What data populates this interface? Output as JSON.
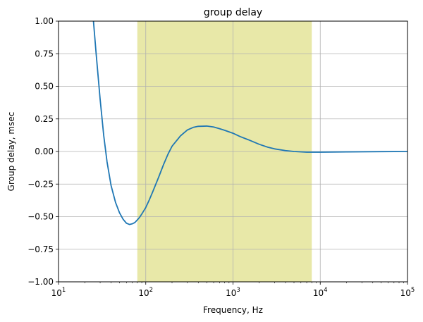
{
  "chart_data": {
    "type": "line",
    "title": "group delay",
    "xlabel": "Frequency, Hz",
    "ylabel": "Group delay, msec",
    "x_scale": "log",
    "xlim": [
      10,
      100000
    ],
    "ylim": [
      -1.0,
      1.0
    ],
    "grid": true,
    "x_ticks": [
      {
        "value": 10,
        "base": "10",
        "exp": "1"
      },
      {
        "value": 100,
        "base": "10",
        "exp": "2"
      },
      {
        "value": 1000,
        "base": "10",
        "exp": "3"
      },
      {
        "value": 10000,
        "base": "10",
        "exp": "4"
      },
      {
        "value": 100000,
        "base": "10",
        "exp": "5"
      }
    ],
    "y_ticks": [
      {
        "value": -1.0,
        "label": "−1.00"
      },
      {
        "value": -0.75,
        "label": "−0.75"
      },
      {
        "value": -0.5,
        "label": "−0.50"
      },
      {
        "value": -0.25,
        "label": "−0.25"
      },
      {
        "value": 0.0,
        "label": "0.00"
      },
      {
        "value": 0.25,
        "label": "0.25"
      },
      {
        "value": 0.5,
        "label": "0.50"
      },
      {
        "value": 0.75,
        "label": "0.75"
      },
      {
        "value": 1.0,
        "label": "1.00"
      }
    ],
    "shaded_band": {
      "x_start": 80,
      "x_end": 8000,
      "color": "#e8e8a8"
    },
    "series": [
      {
        "color": "#1f77b4",
        "x": [
          25,
          27,
          30,
          33,
          36,
          40,
          45,
          50,
          55,
          60,
          65,
          70,
          75,
          80,
          85,
          90,
          100,
          110,
          120,
          140,
          160,
          180,
          200,
          250,
          300,
          350,
          400,
          500,
          600,
          700,
          800,
          1000,
          1200,
          1500,
          2000,
          2500,
          3000,
          4000,
          5000,
          7000,
          10000,
          20000,
          50000,
          100000
        ],
        "y": [
          1.02,
          0.75,
          0.4,
          0.12,
          -0.08,
          -0.26,
          -0.39,
          -0.47,
          -0.52,
          -0.55,
          -0.56,
          -0.555,
          -0.545,
          -0.525,
          -0.505,
          -0.48,
          -0.43,
          -0.37,
          -0.31,
          -0.2,
          -0.1,
          -0.02,
          0.04,
          0.12,
          0.165,
          0.185,
          0.193,
          0.195,
          0.188,
          0.175,
          0.163,
          0.14,
          0.115,
          0.09,
          0.055,
          0.033,
          0.02,
          0.007,
          0.0,
          -0.005,
          -0.005,
          -0.003,
          -0.001,
          0.0
        ]
      }
    ]
  }
}
